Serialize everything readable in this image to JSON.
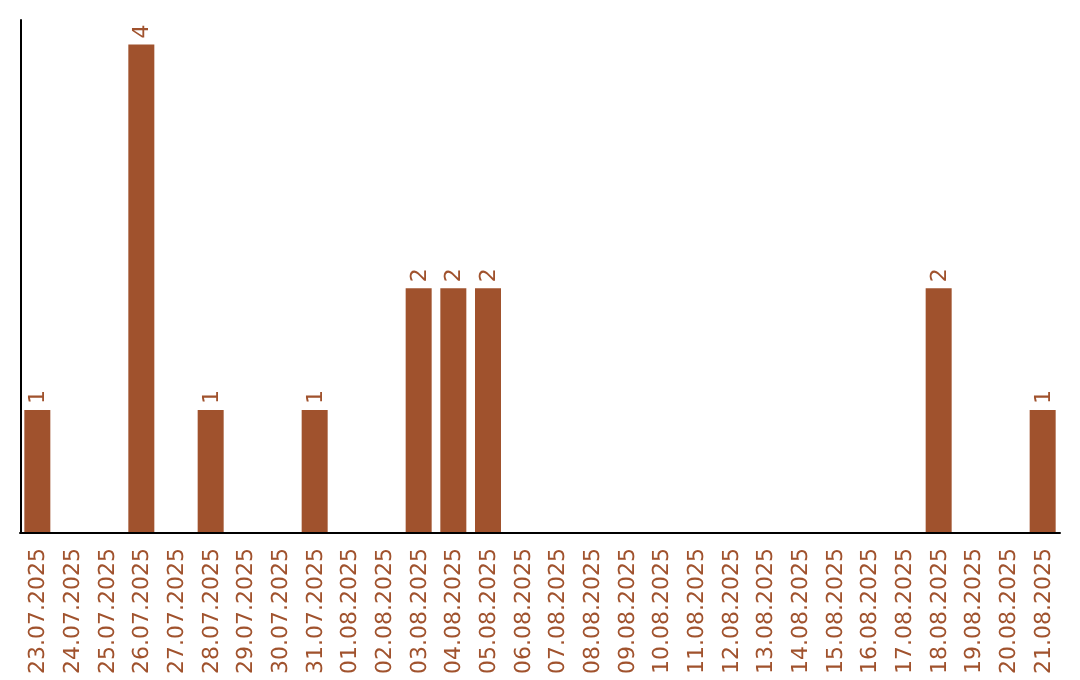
{
  "chart_data": {
    "type": "bar",
    "categories": [
      "23.07.2025",
      "24.07.2025",
      "25.07.2025",
      "26.07.2025",
      "27.07.2025",
      "28.07.2025",
      "29.07.2025",
      "30.07.2025",
      "31.07.2025",
      "01.08.2025",
      "02.08.2025",
      "03.08.2025",
      "04.08.2025",
      "05.08.2025",
      "06.08.2025",
      "07.08.2025",
      "08.08.2025",
      "09.08.2025",
      "10.08.2025",
      "11.08.2025",
      "12.08.2025",
      "13.08.2025",
      "14.08.2025",
      "15.08.2025",
      "16.08.2025",
      "17.08.2025",
      "18.08.2025",
      "19.08.2025",
      "20.08.2025",
      "21.08.2025"
    ],
    "values": [
      1,
      0,
      0,
      4,
      0,
      1,
      0,
      0,
      1,
      0,
      0,
      2,
      2,
      2,
      0,
      0,
      0,
      0,
      0,
      0,
      0,
      0,
      0,
      0,
      0,
      0,
      2,
      0,
      0,
      1
    ],
    "value_labels": [
      "1",
      null,
      null,
      "4",
      null,
      "1",
      null,
      null,
      "1",
      null,
      null,
      "2",
      "2",
      "2",
      null,
      null,
      null,
      null,
      null,
      null,
      null,
      null,
      null,
      null,
      null,
      null,
      "2",
      null,
      null,
      "1"
    ],
    "color": "#a0522d",
    "ylim": [
      0,
      4.2
    ],
    "tick_labels": "x",
    "grid": false
  }
}
